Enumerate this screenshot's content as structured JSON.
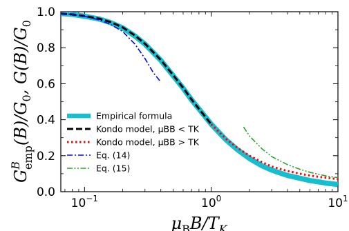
{
  "chart_data": {
    "type": "line",
    "xscale": "log",
    "xlim": [
      0.065,
      10
    ],
    "ylim": [
      0.0,
      1.0
    ],
    "xlabel": "μBB/TK",
    "ylabel": "GBemp(B)/G0, G(B)/G0",
    "xticks": [
      {
        "value": 0.1,
        "base": "10",
        "exp": "−1"
      },
      {
        "value": 1,
        "base": "10",
        "exp": "0"
      },
      {
        "value": 10,
        "base": "10",
        "exp": "1"
      }
    ],
    "yticks": [
      "0.0",
      "0.2",
      "0.4",
      "0.6",
      "0.8",
      "1.0"
    ],
    "ytick_values": [
      0.0,
      0.2,
      0.4,
      0.6,
      0.8,
      1.0
    ],
    "legend_position": "lower-left",
    "series": [
      {
        "name": "Empirical formula",
        "color": "#17becf",
        "style": "solid-thick",
        "x": [
          0.065,
          0.08,
          0.1,
          0.13,
          0.16,
          0.2,
          0.25,
          0.3,
          0.4,
          0.5,
          0.6,
          0.7,
          0.8,
          1.0,
          1.3,
          1.6,
          2.0,
          2.5,
          3.0,
          4.0,
          5.0,
          6.0,
          7.0,
          8.0,
          10.0
        ],
        "y": [
          0.99,
          0.985,
          0.975,
          0.96,
          0.94,
          0.91,
          0.865,
          0.82,
          0.73,
          0.645,
          0.575,
          0.51,
          0.46,
          0.375,
          0.29,
          0.235,
          0.185,
          0.145,
          0.12,
          0.09,
          0.075,
          0.062,
          0.055,
          0.048,
          0.04
        ]
      },
      {
        "name": "Kondo model, μBB < TK",
        "color": "#000000",
        "style": "dashed",
        "x": [
          0.065,
          0.08,
          0.1,
          0.13,
          0.16,
          0.2,
          0.25,
          0.3,
          0.4,
          0.5,
          0.6,
          0.7,
          0.8,
          1.0
        ],
        "y": [
          0.99,
          0.985,
          0.976,
          0.962,
          0.943,
          0.913,
          0.868,
          0.822,
          0.732,
          0.648,
          0.577,
          0.512,
          0.46,
          0.375
        ]
      },
      {
        "name": "Kondo model, μBB > TK",
        "color": "#ff0000",
        "style": "dotted",
        "x": [
          1.0,
          1.3,
          1.6,
          2.0,
          2.5,
          3.0,
          4.0,
          5.0,
          6.0,
          7.0,
          8.0,
          10.0
        ],
        "y": [
          0.375,
          0.295,
          0.245,
          0.2,
          0.165,
          0.14,
          0.115,
          0.1,
          0.09,
          0.083,
          0.078,
          0.07
        ]
      },
      {
        "name": "Eq. (14)",
        "color": "#0000ff",
        "style": "dashdot",
        "x": [
          0.065,
          0.08,
          0.1,
          0.13,
          0.16,
          0.2,
          0.25,
          0.3,
          0.35,
          0.4
        ],
        "y": [
          0.99,
          0.985,
          0.975,
          0.955,
          0.93,
          0.89,
          0.82,
          0.74,
          0.66,
          0.61
        ]
      },
      {
        "name": "Eq. (15)",
        "color": "#2ca02c",
        "style": "dashdotdot",
        "x": [
          1.8,
          2.0,
          2.5,
          3.0,
          4.0,
          5.0,
          6.0,
          7.0,
          8.0,
          10.0
        ],
        "y": [
          0.36,
          0.31,
          0.24,
          0.195,
          0.15,
          0.125,
          0.108,
          0.097,
          0.088,
          0.078
        ]
      }
    ]
  }
}
